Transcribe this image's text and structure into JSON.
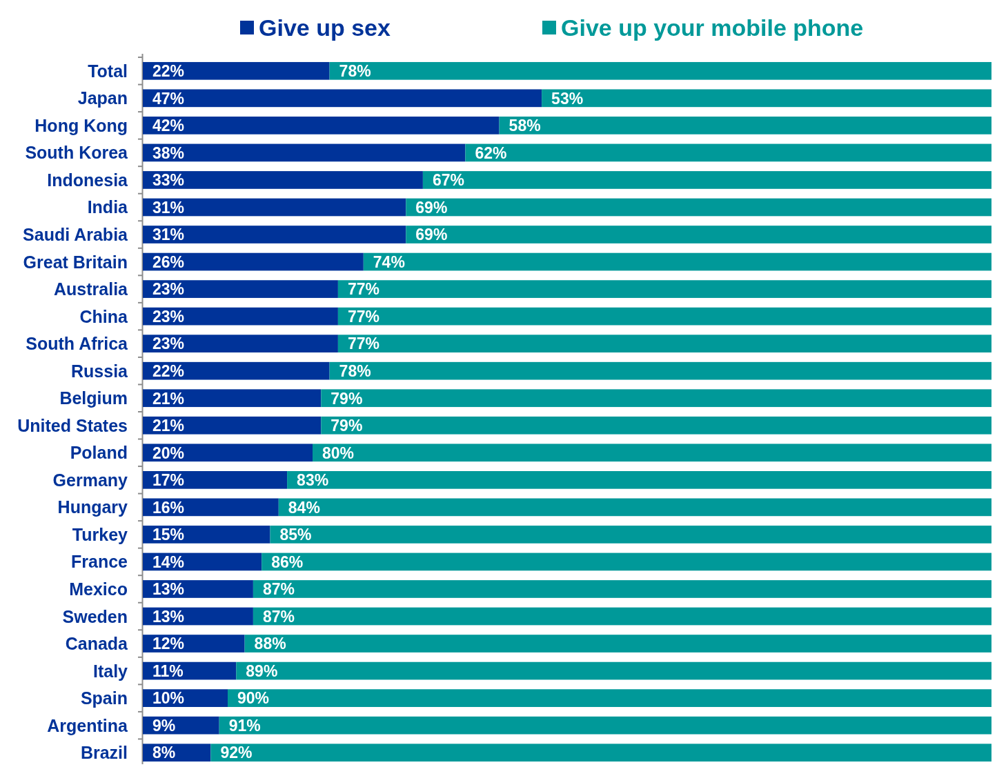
{
  "chart_data": {
    "type": "bar",
    "orientation": "horizontal",
    "stacked": true,
    "legend": "top",
    "categories": [
      "Total",
      "Japan",
      "Hong Kong",
      "South Korea",
      "Indonesia",
      "India",
      "Saudi Arabia",
      "Great Britain",
      "Australia",
      "China",
      "South Africa",
      "Russia",
      "Belgium",
      "United States",
      "Poland",
      "Germany",
      "Hungary",
      "Turkey",
      "France",
      "Mexico",
      "Sweden",
      "Canada",
      "Italy",
      "Spain",
      "Argentina",
      "Brazil"
    ],
    "series": [
      {
        "name": "Give up sex",
        "color": "#003399",
        "values": [
          22,
          47,
          42,
          38,
          33,
          31,
          31,
          26,
          23,
          23,
          23,
          22,
          21,
          21,
          20,
          17,
          16,
          15,
          14,
          13,
          13,
          12,
          11,
          10,
          9,
          8
        ],
        "value_labels": [
          "22%",
          "47%",
          "42%",
          "38%",
          "33%",
          "31%",
          "31%",
          "26%",
          "23%",
          "23%",
          "23%",
          "22%",
          "21%",
          "21%",
          "20%",
          "17%",
          "16%",
          "15%",
          "14%",
          "13%",
          "13%",
          "12%",
          "11%",
          "10%",
          "9%",
          "8%"
        ]
      },
      {
        "name": "Give up your mobile phone",
        "color": "#009999",
        "values": [
          78,
          53,
          58,
          62,
          67,
          69,
          69,
          74,
          77,
          77,
          77,
          78,
          79,
          79,
          80,
          83,
          84,
          85,
          86,
          87,
          87,
          88,
          89,
          90,
          91,
          92
        ],
        "value_labels": [
          "78%",
          "53%",
          "58%",
          "62%",
          "67%",
          "69%",
          "69%",
          "74%",
          "77%",
          "77%",
          "77%",
          "78%",
          "79%",
          "79%",
          "80%",
          "83%",
          "84%",
          "85%",
          "86%",
          "87%",
          "87%",
          "88%",
          "89%",
          "90%",
          "91%",
          "92%"
        ]
      }
    ]
  }
}
